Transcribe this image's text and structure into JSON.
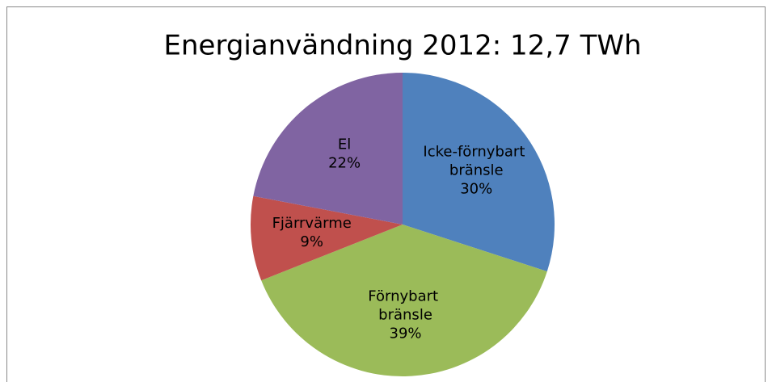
{
  "chart_data": {
    "type": "pie",
    "title": "Energianvändning 2012: 12,7 TWh",
    "categories": [
      "Icke-förnybart bränsle",
      "Förnybart bränsle",
      "Fjärrvärme",
      "El"
    ],
    "values": [
      30,
      39,
      9,
      22
    ],
    "value_labels": [
      "30%",
      "39%",
      "9%",
      "22%"
    ],
    "colors": [
      "#4f81bd",
      "#9bbb59",
      "#c0504d",
      "#8064a2"
    ]
  }
}
